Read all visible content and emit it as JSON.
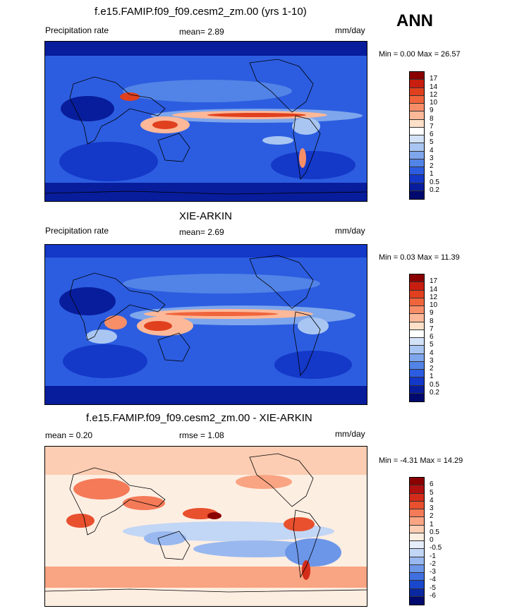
{
  "season": "ANN",
  "panels": [
    {
      "title": "f.e15.FAMIP.f09_f09.cesm2_zm.00 (yrs 1-10)",
      "left_label": "Precipitation rate",
      "center_label": "mean=  2.89",
      "right_label": "mm/day",
      "minmax": "Min =  0.00 Max =  26.57",
      "levels": [
        "17",
        "14",
        "12",
        "10",
        "9",
        "8",
        "7",
        "6",
        "5",
        "4",
        "3",
        "2",
        "1",
        "0.5",
        "0.2"
      ],
      "colors": [
        "#8b0000",
        "#c81e0f",
        "#e0401e",
        "#f0643c",
        "#f88e68",
        "#fcb898",
        "#fde0c8",
        "#ffffff",
        "#d4e2f8",
        "#a9c6f2",
        "#7ea6ec",
        "#5283e6",
        "#2c5de0",
        "#1438c8",
        "#081d9c",
        "#000a6e"
      ]
    },
    {
      "title": "XIE-ARKIN",
      "left_label": "Precipitation rate",
      "center_label": "mean=  2.69",
      "right_label": "mm/day",
      "minmax": "Min =  0.03 Max =  11.39",
      "levels": [
        "17",
        "14",
        "12",
        "10",
        "9",
        "8",
        "7",
        "6",
        "5",
        "4",
        "3",
        "2",
        "1",
        "0.5",
        "0.2"
      ],
      "colors": [
        "#8b0000",
        "#c81e0f",
        "#e0401e",
        "#f0643c",
        "#f88e68",
        "#fcb898",
        "#fde0c8",
        "#ffffff",
        "#d4e2f8",
        "#a9c6f2",
        "#7ea6ec",
        "#5283e6",
        "#2c5de0",
        "#1438c8",
        "#081d9c",
        "#000a6e"
      ]
    },
    {
      "title": "f.e15.FAMIP.f09_f09.cesm2_zm.00 - XIE-ARKIN",
      "left_label": "mean =  0.20",
      "center_label": "rmse =  1.08",
      "right_label": "mm/day",
      "minmax": "Min = -4.31 Max =  14.29",
      "levels": [
        "6",
        "5",
        "4",
        "3",
        "2",
        "1",
        "0.5",
        "0",
        "-0.5",
        "-1",
        "-2",
        "-3",
        "-4",
        "-5",
        "-6"
      ],
      "colors": [
        "#8b0000",
        "#b01010",
        "#d42c1a",
        "#e8502e",
        "#f47a58",
        "#f9a482",
        "#fccdb2",
        "#fdeee2",
        "#e6eefb",
        "#c2d6f5",
        "#98b8ef",
        "#6c96e8",
        "#4070e0",
        "#1a48cc",
        "#0a28a0",
        "#000a6e"
      ]
    }
  ]
}
